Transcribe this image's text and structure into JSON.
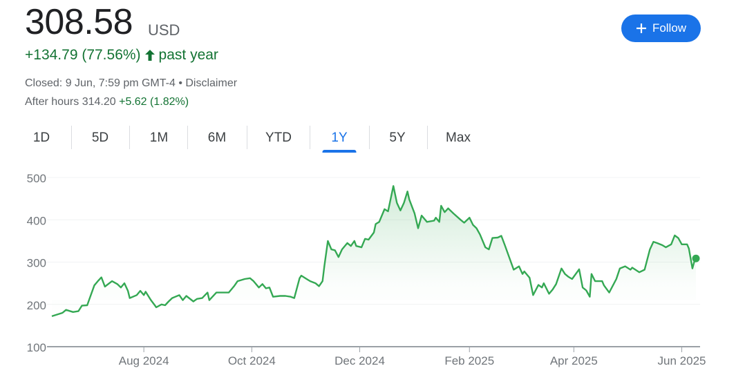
{
  "quote": {
    "price": "308.58",
    "currency": "USD",
    "change": "+134.79 (77.56%)",
    "change_icon": "arrow-up-icon",
    "change_period": "past year",
    "closed_text": "Closed: 9 Jun, 7:59 pm GMT-4 • Disclaimer",
    "after_hours_label": "After hours 314.20",
    "after_hours_change": "+5.62 (1.82%)"
  },
  "follow_button": {
    "label": "Follow",
    "icon": "plus-icon",
    "color": "#1a73e8"
  },
  "tabs": [
    {
      "label": "1D"
    },
    {
      "label": "5D"
    },
    {
      "label": "1M"
    },
    {
      "label": "6M"
    },
    {
      "label": "YTD"
    },
    {
      "label": "1Y",
      "active": true
    },
    {
      "label": "5Y"
    },
    {
      "label": "Max"
    }
  ],
  "colors": {
    "positive": "#137333",
    "line": "#34a853",
    "accent": "#1a73e8"
  },
  "chart_data": {
    "type": "area",
    "title": "",
    "xlabel": "",
    "ylabel": "",
    "ylim": [
      100,
      500
    ],
    "yticks": [
      100,
      200,
      300,
      400,
      500
    ],
    "xlim": [
      "2024-06-10",
      "2025-06-09"
    ],
    "xticks": [
      {
        "date": "2024-08-01",
        "label": "Aug 2024"
      },
      {
        "date": "2024-10-01",
        "label": "Oct 2024"
      },
      {
        "date": "2024-12-01",
        "label": "Dec 2024"
      },
      {
        "date": "2025-02-01",
        "label": "Feb 2025"
      },
      {
        "date": "2025-04-01",
        "label": "Apr 2025"
      },
      {
        "date": "2025-06-01",
        "label": "Jun 2025"
      }
    ],
    "grid": true,
    "series": [
      {
        "points": [
          [
            "2024-06-10",
            172
          ],
          [
            "2024-06-16",
            180
          ],
          [
            "2024-06-18",
            187
          ],
          [
            "2024-06-22",
            182
          ],
          [
            "2024-06-25",
            184
          ],
          [
            "2024-06-27",
            197
          ],
          [
            "2024-06-30",
            198
          ],
          [
            "2024-07-01",
            210
          ],
          [
            "2024-07-04",
            245
          ],
          [
            "2024-07-06",
            255
          ],
          [
            "2024-07-08",
            264
          ],
          [
            "2024-07-10",
            242
          ],
          [
            "2024-07-14",
            255
          ],
          [
            "2024-07-17",
            248
          ],
          [
            "2024-07-19",
            240
          ],
          [
            "2024-07-21",
            250
          ],
          [
            "2024-07-23",
            232
          ],
          [
            "2024-07-24",
            215
          ],
          [
            "2024-07-28",
            222
          ],
          [
            "2024-07-30",
            232
          ],
          [
            "2024-08-01",
            222
          ],
          [
            "2024-08-02",
            230
          ],
          [
            "2024-08-05",
            210
          ],
          [
            "2024-08-07",
            199
          ],
          [
            "2024-08-08",
            193
          ],
          [
            "2024-08-11",
            200
          ],
          [
            "2024-08-13",
            198
          ],
          [
            "2024-08-15",
            207
          ],
          [
            "2024-08-17",
            215
          ],
          [
            "2024-08-21",
            222
          ],
          [
            "2024-08-23",
            210
          ],
          [
            "2024-08-25",
            220
          ],
          [
            "2024-08-29",
            207
          ],
          [
            "2024-08-31",
            213
          ],
          [
            "2024-09-03",
            215
          ],
          [
            "2024-09-06",
            228
          ],
          [
            "2024-09-07",
            210
          ],
          [
            "2024-09-11",
            228
          ],
          [
            "2024-09-15",
            228
          ],
          [
            "2024-09-18",
            228
          ],
          [
            "2024-09-21",
            243
          ],
          [
            "2024-09-23",
            255
          ],
          [
            "2024-09-27",
            260
          ],
          [
            "2024-09-30",
            262
          ],
          [
            "2024-10-02",
            255
          ],
          [
            "2024-10-05",
            240
          ],
          [
            "2024-10-07",
            248
          ],
          [
            "2024-10-09",
            238
          ],
          [
            "2024-10-11",
            240
          ],
          [
            "2024-10-13",
            218
          ],
          [
            "2024-10-17",
            220
          ],
          [
            "2024-10-20",
            220
          ],
          [
            "2024-10-23",
            218
          ],
          [
            "2024-10-25",
            215
          ],
          [
            "2024-10-28",
            262
          ],
          [
            "2024-10-29",
            268
          ],
          [
            "2024-11-01",
            260
          ],
          [
            "2024-11-03",
            255
          ],
          [
            "2024-11-06",
            250
          ],
          [
            "2024-11-08",
            243
          ],
          [
            "2024-11-10",
            255
          ],
          [
            "2024-11-11",
            290
          ],
          [
            "2024-11-13",
            350
          ],
          [
            "2024-11-15",
            330
          ],
          [
            "2024-11-17",
            328
          ],
          [
            "2024-11-19",
            312
          ],
          [
            "2024-11-21",
            330
          ],
          [
            "2024-11-24",
            345
          ],
          [
            "2024-11-26",
            338
          ],
          [
            "2024-11-28",
            350
          ],
          [
            "2024-11-29",
            338
          ],
          [
            "2024-12-02",
            335
          ],
          [
            "2024-12-04",
            355
          ],
          [
            "2024-12-06",
            353
          ],
          [
            "2024-12-09",
            370
          ],
          [
            "2024-12-10",
            390
          ],
          [
            "2024-12-12",
            395
          ],
          [
            "2024-12-15",
            425
          ],
          [
            "2024-12-17",
            420
          ],
          [
            "2024-12-20",
            480
          ],
          [
            "2024-12-22",
            440
          ],
          [
            "2024-12-24",
            422
          ],
          [
            "2024-12-26",
            440
          ],
          [
            "2024-12-28",
            467
          ],
          [
            "2024-12-29",
            448
          ],
          [
            "2025-01-01",
            415
          ],
          [
            "2025-01-03",
            380
          ],
          [
            "2025-01-05",
            410
          ],
          [
            "2025-01-08",
            395
          ],
          [
            "2025-01-12",
            398
          ],
          [
            "2025-01-13",
            405
          ],
          [
            "2025-01-15",
            395
          ],
          [
            "2025-01-16",
            433
          ],
          [
            "2025-01-18",
            418
          ],
          [
            "2025-01-20",
            427
          ],
          [
            "2025-01-23",
            415
          ],
          [
            "2025-01-27",
            400
          ],
          [
            "2025-01-29",
            393
          ],
          [
            "2025-02-01",
            405
          ],
          [
            "2025-02-03",
            388
          ],
          [
            "2025-02-05",
            380
          ],
          [
            "2025-02-07",
            365
          ],
          [
            "2025-02-10",
            335
          ],
          [
            "2025-02-12",
            330
          ],
          [
            "2025-02-14",
            357
          ],
          [
            "2025-02-17",
            358
          ],
          [
            "2025-02-19",
            362
          ],
          [
            "2025-02-21",
            340
          ],
          [
            "2025-02-24",
            305
          ],
          [
            "2025-02-26",
            282
          ],
          [
            "2025-03-01",
            290
          ],
          [
            "2025-03-03",
            272
          ],
          [
            "2025-03-04",
            278
          ],
          [
            "2025-03-07",
            263
          ],
          [
            "2025-03-09",
            222
          ],
          [
            "2025-03-12",
            246
          ],
          [
            "2025-03-14",
            240
          ],
          [
            "2025-03-15",
            250
          ],
          [
            "2025-03-18",
            225
          ],
          [
            "2025-03-20",
            235
          ],
          [
            "2025-03-22",
            248
          ],
          [
            "2025-03-25",
            285
          ],
          [
            "2025-03-27",
            272
          ],
          [
            "2025-03-29",
            265
          ],
          [
            "2025-03-31",
            260
          ],
          [
            "2025-04-04",
            283
          ],
          [
            "2025-04-06",
            240
          ],
          [
            "2025-04-08",
            233
          ],
          [
            "2025-04-10",
            218
          ],
          [
            "2025-04-11",
            272
          ],
          [
            "2025-04-13",
            255
          ],
          [
            "2025-04-17",
            255
          ],
          [
            "2025-04-18",
            245
          ],
          [
            "2025-04-21",
            228
          ],
          [
            "2025-04-25",
            260
          ],
          [
            "2025-04-27",
            285
          ],
          [
            "2025-04-30",
            290
          ],
          [
            "2025-05-03",
            282
          ],
          [
            "2025-05-04",
            287
          ],
          [
            "2025-05-08",
            276
          ],
          [
            "2025-05-11",
            282
          ],
          [
            "2025-05-14",
            330
          ],
          [
            "2025-05-16",
            348
          ],
          [
            "2025-05-18",
            345
          ],
          [
            "2025-05-21",
            340
          ],
          [
            "2025-05-23",
            335
          ],
          [
            "2025-05-26",
            342
          ],
          [
            "2025-05-28",
            363
          ],
          [
            "2025-05-30",
            357
          ],
          [
            "2025-06-01",
            342
          ],
          [
            "2025-06-04",
            342
          ],
          [
            "2025-06-05",
            332
          ],
          [
            "2025-06-07",
            285
          ],
          [
            "2025-06-08",
            300
          ],
          [
            "2025-06-09",
            308.58
          ]
        ]
      }
    ]
  }
}
